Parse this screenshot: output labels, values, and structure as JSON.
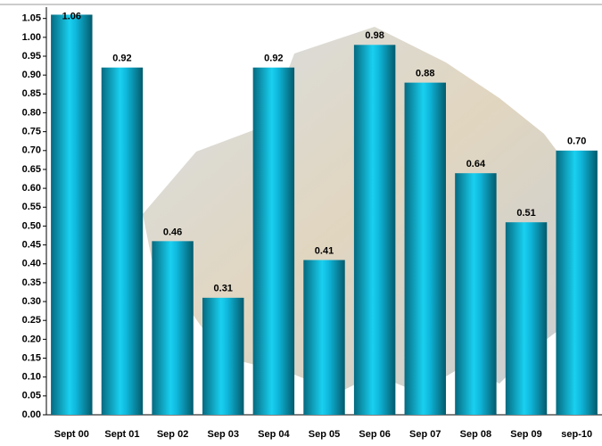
{
  "chart_data": {
    "type": "bar",
    "categories": [
      "Sept 00",
      "Sept 01",
      "Sep 02",
      "Sep 03",
      "Sep 04",
      "Sep 05",
      "Sep 06",
      "Sep 07",
      "Sep 08",
      "Sep 09",
      "sep-10"
    ],
    "values": [
      1.06,
      0.92,
      0.46,
      0.31,
      0.92,
      0.41,
      0.98,
      0.88,
      0.64,
      0.51,
      0.7
    ],
    "value_labels": [
      "1.06",
      "0.92",
      "0.46",
      "0.31",
      "0.92",
      "0.41",
      "0.98",
      "0.88",
      "0.64",
      "0.51",
      "0.70"
    ],
    "color": "#0aa6c8",
    "ylim": [
      0,
      1.08
    ],
    "yticks": [
      {
        "value": 0,
        "label": "0.00"
      },
      {
        "value": 0.05,
        "label": "0.05"
      },
      {
        "value": 0.1,
        "label": "0.10"
      },
      {
        "value": 0.15,
        "label": "0.15"
      },
      {
        "value": 0.2,
        "label": "0.20"
      },
      {
        "value": 0.25,
        "label": "0.25"
      },
      {
        "value": 0.3,
        "label": "0.30"
      },
      {
        "value": 0.35,
        "label": "0.35"
      },
      {
        "value": 0.4,
        "label": "0.40"
      },
      {
        "value": 0.45,
        "label": "0.45"
      },
      {
        "value": 0.5,
        "label": "0.50"
      },
      {
        "value": 0.55,
        "label": "0.55"
      },
      {
        "value": 0.6,
        "label": "0.60"
      },
      {
        "value": 0.65,
        "label": "0.65"
      },
      {
        "value": 0.7,
        "label": "0.70"
      },
      {
        "value": 0.75,
        "label": "0.75"
      },
      {
        "value": 0.8,
        "label": "0.80"
      },
      {
        "value": 0.85,
        "label": "0.85"
      },
      {
        "value": 0.9,
        "label": "0.90"
      },
      {
        "value": 0.95,
        "label": "0.95"
      },
      {
        "value": 1,
        "label": "1.00"
      },
      {
        "value": 1.05,
        "label": "1.05"
      }
    ],
    "grid": false
  }
}
